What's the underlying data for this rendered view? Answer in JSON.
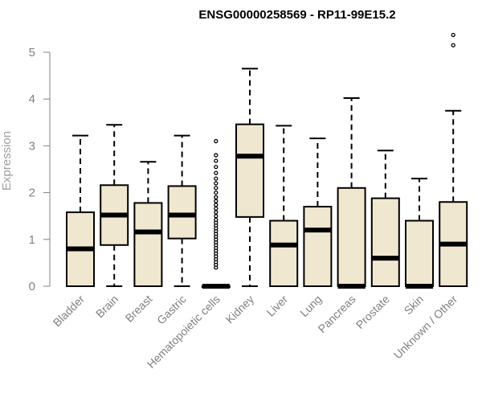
{
  "chart_data": {
    "type": "boxplot",
    "title": "ENSG00000258569 - RP11-99E15.2",
    "ylabel": "Expression",
    "xlabel": "",
    "ylim": [
      0,
      5.4
    ],
    "yticks": [
      0,
      1,
      2,
      3,
      4,
      5
    ],
    "grid": false,
    "colors": {
      "box_fill": "#efe7cf",
      "stroke": "#000000",
      "axis": "#808080"
    },
    "categories": [
      "Bladder",
      "Brain",
      "Breast",
      "Gastric",
      "Hematopoietic cells",
      "Kidney",
      "Liver",
      "Lung",
      "Pancreas",
      "Prostate",
      "Skin",
      "Unknown / Other"
    ],
    "boxes": [
      {
        "min": 0,
        "q1": 0,
        "median": 0.8,
        "q3": 1.58,
        "max": 3.22,
        "outliers": []
      },
      {
        "min": 0,
        "q1": 0.88,
        "median": 1.52,
        "q3": 2.16,
        "max": 3.45,
        "outliers": []
      },
      {
        "min": 0,
        "q1": 0,
        "median": 1.16,
        "q3": 1.78,
        "max": 2.66,
        "outliers": []
      },
      {
        "min": 0,
        "q1": 1.02,
        "median": 1.52,
        "q3": 2.14,
        "max": 3.22,
        "outliers": []
      },
      {
        "min": 0,
        "q1": 0,
        "median": 0,
        "q3": 0,
        "max": 0,
        "outliers": [
          0.4,
          0.46,
          0.52,
          0.58,
          0.64,
          0.7,
          0.76,
          0.82,
          0.88,
          0.94,
          1.0,
          1.06,
          1.12,
          1.18,
          1.24,
          1.3,
          1.36,
          1.42,
          1.5,
          1.58,
          1.66,
          1.74,
          1.82,
          1.9,
          2.0,
          2.1,
          2.2,
          2.3,
          2.42,
          2.55,
          2.68,
          2.8,
          3.1
        ]
      },
      {
        "min": 0,
        "q1": 1.48,
        "median": 2.78,
        "q3": 3.46,
        "max": 4.65,
        "outliers": []
      },
      {
        "min": 0,
        "q1": 0,
        "median": 0.88,
        "q3": 1.4,
        "max": 3.43,
        "outliers": []
      },
      {
        "min": 0,
        "q1": 0,
        "median": 1.2,
        "q3": 1.7,
        "max": 3.16,
        "outliers": []
      },
      {
        "min": 0,
        "q1": 0,
        "median": 0,
        "q3": 2.1,
        "max": 4.02,
        "outliers": []
      },
      {
        "min": 0,
        "q1": 0,
        "median": 0.6,
        "q3": 1.88,
        "max": 2.9,
        "outliers": []
      },
      {
        "min": 0,
        "q1": 0,
        "median": 0,
        "q3": 1.4,
        "max": 2.3,
        "outliers": []
      },
      {
        "min": 0,
        "q1": 0,
        "median": 0.9,
        "q3": 1.8,
        "max": 3.75,
        "outliers": [
          5.15,
          5.37
        ]
      }
    ]
  }
}
